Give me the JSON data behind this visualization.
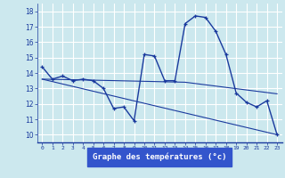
{
  "xlabel": "Graphe des températures (°c)",
  "background_color": "#cce8ee",
  "grid_color": "#ffffff",
  "line_color": "#1a3a9e",
  "axis_bar_color": "#3355cc",
  "x_ticks": [
    0,
    1,
    2,
    3,
    4,
    5,
    6,
    7,
    8,
    9,
    10,
    11,
    12,
    13,
    14,
    15,
    16,
    17,
    18,
    19,
    20,
    21,
    22,
    23
  ],
  "y_ticks": [
    10,
    11,
    12,
    13,
    14,
    15,
    16,
    17,
    18
  ],
  "ylim": [
    9.5,
    18.5
  ],
  "xlim": [
    -0.5,
    23.5
  ],
  "series1_x": [
    0,
    1,
    2,
    3,
    4,
    5,
    6,
    7,
    8,
    9,
    10,
    11,
    12,
    13,
    14,
    15,
    16,
    17,
    18,
    19,
    20,
    21,
    22,
    23
  ],
  "series1_y": [
    14.4,
    13.6,
    13.8,
    13.5,
    13.6,
    13.5,
    13.0,
    11.7,
    11.8,
    10.9,
    15.2,
    15.1,
    13.5,
    13.5,
    17.2,
    17.7,
    17.6,
    16.7,
    15.2,
    12.7,
    12.1,
    11.8,
    12.2,
    10.0
  ],
  "series2_x": [
    0,
    4,
    14,
    23
  ],
  "series2_y": [
    13.6,
    13.55,
    13.4,
    12.65
  ],
  "series3_x": [
    0,
    23
  ],
  "series3_y": [
    13.6,
    10.0
  ]
}
